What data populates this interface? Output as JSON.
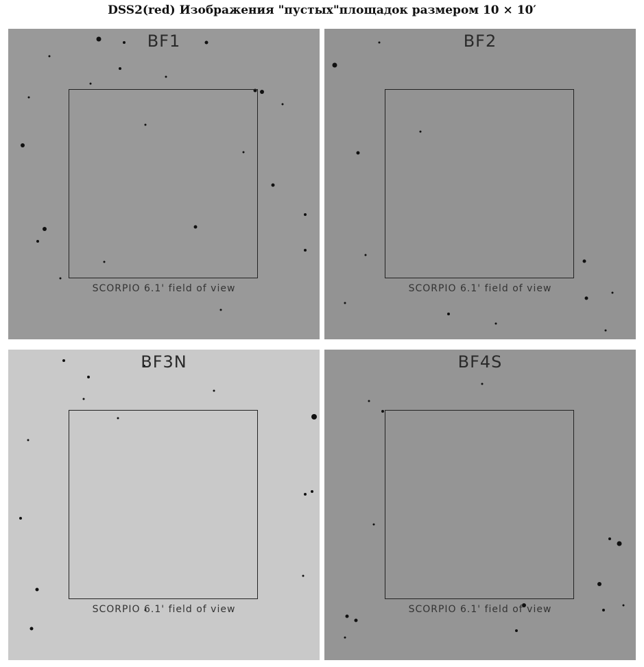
{
  "title": "DSS2(red) Изображения \"пустых\"площадок размером 10 × 10′",
  "fov_label": "SCORPIO 6.1' field of view",
  "panels": [
    {
      "label": "BF1",
      "background": "#999999"
    },
    {
      "label": "BF2",
      "background": "#939393"
    },
    {
      "label": "BF3N",
      "background": "#c9c9c9"
    },
    {
      "label": "BF4S",
      "background": "#959595"
    }
  ]
}
